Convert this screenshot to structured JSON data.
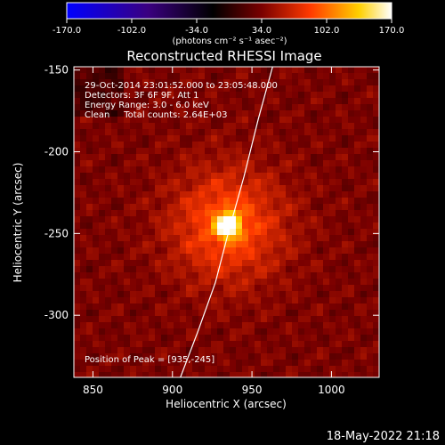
{
  "chart_data": {
    "type": "heatmap",
    "title": "Reconstructed RHESSI Image",
    "colorbar": {
      "ticks": [
        "-170.0",
        "-102.0",
        "-34.0",
        "34.0",
        "102.0",
        "170.0"
      ],
      "range": [
        -170,
        170
      ],
      "units_label": "(photons cm⁻² s⁻¹ asec⁻²)",
      "colors": [
        "#0000ff",
        "#3a0080",
        "#000000",
        "#7a0000",
        "#ff3a00",
        "#ffd000",
        "#ffffff"
      ]
    },
    "xlabel": "Heliocentric X (arcsec)",
    "ylabel": "Heliocentric Y (arcsec)",
    "xlim": [
      838,
      1030
    ],
    "ylim": [
      -338,
      -148
    ],
    "xticks": [
      850,
      900,
      950,
      1000
    ],
    "yticks": [
      -150,
      -200,
      -250,
      -300
    ],
    "annotations": [
      "29-Oct-2014 23:01:52.000 to 23:05:48.000",
      "Detectors: 3F 6F 9F, Att 1",
      "Energy Range: 3.0 - 6.0 keV",
      "Clean     Total counts: 2.64E+03"
    ],
    "peak_label": "Position of Peak = [935,-245]",
    "peak": {
      "x": 935,
      "y": -245,
      "value": 170
    },
    "limb_curve": [
      [
        905,
        -338
      ],
      [
        916,
        -310
      ],
      [
        927,
        -280
      ],
      [
        935,
        -250
      ],
      [
        945,
        -215
      ],
      [
        954,
        -180
      ],
      [
        963,
        -148
      ]
    ],
    "grid": false
  },
  "footer": {
    "timestamp": "18-May-2022 21:18"
  }
}
